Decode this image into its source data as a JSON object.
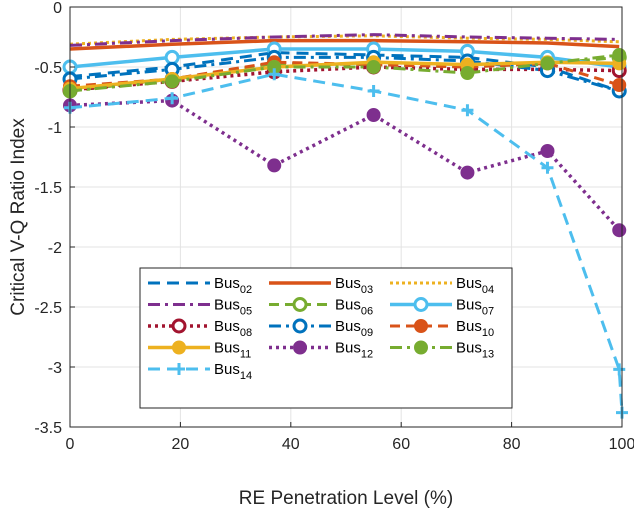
{
  "chart_data": {
    "type": "line",
    "xlabel": "RE Penetration Level (%)",
    "ylabel": "Critical V-Q Ratio Index",
    "xlim": [
      0,
      100
    ],
    "ylim": [
      -3.5,
      0
    ],
    "xticks": [
      0,
      20,
      40,
      60,
      80,
      100
    ],
    "yticks": [
      0,
      -0.5,
      -1,
      -1.5,
      -2,
      -2.5,
      -3,
      -3.5
    ],
    "xtick_labels": [
      "0",
      "20",
      "40",
      "60",
      "80",
      "100"
    ],
    "ytick_labels": [
      "0",
      "-0.5",
      "-1",
      "-1.5",
      "-2",
      "-2.5",
      "-3",
      "-3.5"
    ],
    "grid": true,
    "legend_position": "lower-center",
    "x": [
      0,
      18.5,
      37,
      55,
      72,
      86.5,
      99.5
    ],
    "series": [
      {
        "name": "Bus",
        "sub": "02",
        "color": "#0072BD",
        "dash": "12,7",
        "width": 3,
        "marker": "none",
        "values": [
          -0.58,
          -0.5,
          -0.38,
          -0.4,
          -0.42,
          -0.5,
          -0.7
        ]
      },
      {
        "name": "Bus",
        "sub": "03",
        "color": "#D95319",
        "dash": "",
        "width": 3.5,
        "marker": "none",
        "values": [
          -0.35,
          -0.31,
          -0.28,
          -0.28,
          -0.29,
          -0.3,
          -0.33
        ]
      },
      {
        "name": "Bus",
        "sub": "04",
        "color": "#EDB120",
        "dash": "3,3",
        "width": 3,
        "marker": "none",
        "values": [
          -0.31,
          -0.27,
          -0.25,
          -0.24,
          -0.26,
          -0.27,
          -0.29
        ]
      },
      {
        "name": "Bus",
        "sub": "05",
        "color": "#7E2F8E",
        "dash": "12,5,3,5",
        "width": 3,
        "marker": "none",
        "values": [
          -0.32,
          -0.28,
          -0.25,
          -0.23,
          -0.25,
          -0.26,
          -0.27
        ]
      },
      {
        "name": "Bus",
        "sub": "06",
        "color": "#77AC30",
        "dash": "10,6",
        "width": 3,
        "marker": "open-circle",
        "values": [
          -0.7,
          -0.6,
          -0.47,
          -0.48,
          -0.5,
          -0.47,
          -0.42
        ]
      },
      {
        "name": "Bus",
        "sub": "07",
        "color": "#4DBEEE",
        "dash": "",
        "width": 3.5,
        "marker": "open-circle",
        "values": [
          -0.5,
          -0.42,
          -0.35,
          -0.35,
          -0.37,
          -0.42,
          -0.5
        ]
      },
      {
        "name": "Bus",
        "sub": "08",
        "color": "#A2142F",
        "dash": "3,4",
        "width": 3.5,
        "marker": "open-circle",
        "values": [
          -0.69,
          -0.62,
          -0.54,
          -0.5,
          -0.52,
          -0.52,
          -0.53
        ]
      },
      {
        "name": "Bus",
        "sub": "09",
        "color": "#0072BD",
        "dash": "12,5,3,5",
        "width": 3,
        "marker": "open-circle",
        "values": [
          -0.6,
          -0.52,
          -0.42,
          -0.42,
          -0.45,
          -0.53,
          -0.7
        ]
      },
      {
        "name": "Bus",
        "sub": "10",
        "color": "#D95319",
        "dash": "10,6",
        "width": 3,
        "marker": "filled-circle",
        "values": [
          -0.66,
          -0.6,
          -0.46,
          -0.48,
          -0.5,
          -0.47,
          -0.65
        ]
      },
      {
        "name": "Bus",
        "sub": "11",
        "color": "#EDB120",
        "dash": "",
        "width": 3.5,
        "marker": "filled-circle",
        "values": [
          -0.68,
          -0.6,
          -0.5,
          -0.46,
          -0.48,
          -0.46,
          -0.47
        ]
      },
      {
        "name": "Bus",
        "sub": "12",
        "color": "#7E2F8E",
        "dash": "3,4",
        "width": 3.5,
        "marker": "filled-circle",
        "values": [
          -0.82,
          -0.78,
          -1.32,
          -0.9,
          -1.38,
          -1.2,
          -1.86
        ]
      },
      {
        "name": "Bus",
        "sub": "13",
        "color": "#77AC30",
        "dash": "12,5,3,5",
        "width": 3,
        "marker": "filled-circle",
        "values": [
          -0.7,
          -0.62,
          -0.5,
          -0.5,
          -0.55,
          -0.47,
          -0.4
        ]
      },
      {
        "name": "Bus",
        "sub": "14",
        "color": "#4DBEEE",
        "dash": "12,7",
        "width": 3,
        "marker": "plus",
        "values": [
          -0.84,
          -0.76,
          -0.56,
          -0.7,
          -0.86,
          -1.34,
          -3.02
        ]
      }
    ],
    "extra_points": [
      {
        "series_index": 12,
        "x": 100,
        "y": -3.38
      }
    ]
  }
}
